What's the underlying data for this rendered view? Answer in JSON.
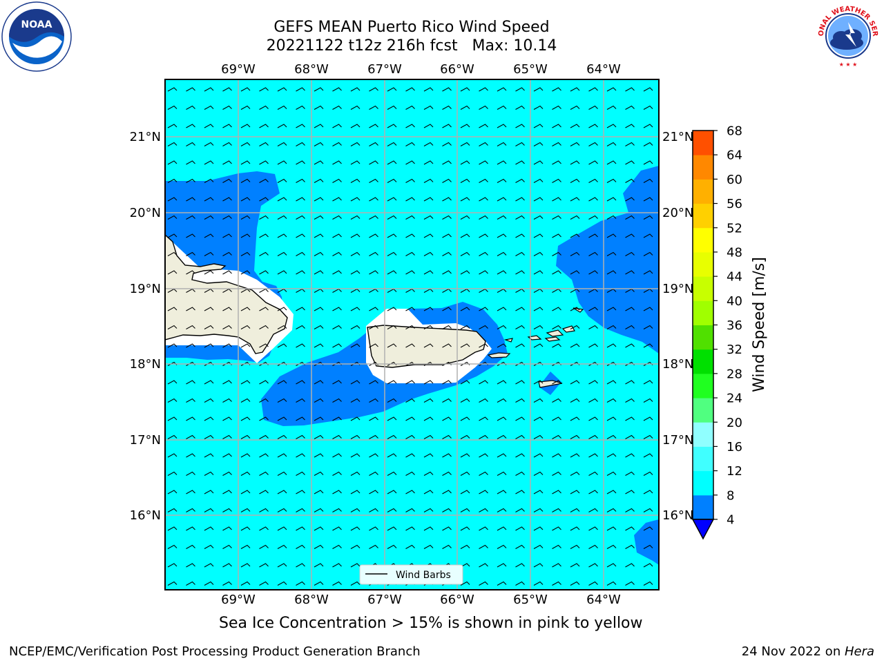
{
  "title": {
    "line1": "GEFS MEAN Puerto Rico Wind Speed",
    "line2": "20221122 t12z 216h fcst   Max: 10.14"
  },
  "map": {
    "lon_labels": [
      "69°W",
      "68°W",
      "67°W",
      "66°W",
      "65°W",
      "64°W"
    ],
    "lat_labels": [
      "21°N",
      "20°N",
      "19°N",
      "18°N",
      "17°N",
      "16°N"
    ],
    "legend_label": "Wind Barbs",
    "colors": {
      "ocean_cyan": "#00ffff",
      "wind_blue": "#0080ff",
      "land": "#efeedc",
      "grid": "#b0b0b0"
    }
  },
  "colorbar": {
    "label": "Wind Speed [m/s]",
    "ticks": [
      "4",
      "8",
      "12",
      "16",
      "20",
      "24",
      "28",
      "32",
      "36",
      "40",
      "44",
      "48",
      "52",
      "56",
      "60",
      "64",
      "68"
    ],
    "colors": [
      "#0080ff",
      "#00ffff",
      "#40ffff",
      "#90ffff",
      "#50ff80",
      "#20ff20",
      "#00e000",
      "#50e000",
      "#a0ff00",
      "#c8ff00",
      "#e8ff00",
      "#ffff00",
      "#ffd000",
      "#ffb000",
      "#ff8800",
      "#ff5000",
      "#ff2000",
      "#ff0000"
    ],
    "under_color": "#0000ff"
  },
  "footer": {
    "ice_note": "Sea Ice Concentration > 15% is shown in pink to yellow",
    "org": "NCEP/EMC/Verification Post Processing Product Generation Branch",
    "date_prefix": "24 Nov 2022 on ",
    "machine": "Hera"
  },
  "logos": {
    "noaa_text": "NOAA",
    "nws_text": "NATIONAL WEATHER SERVICE"
  }
}
